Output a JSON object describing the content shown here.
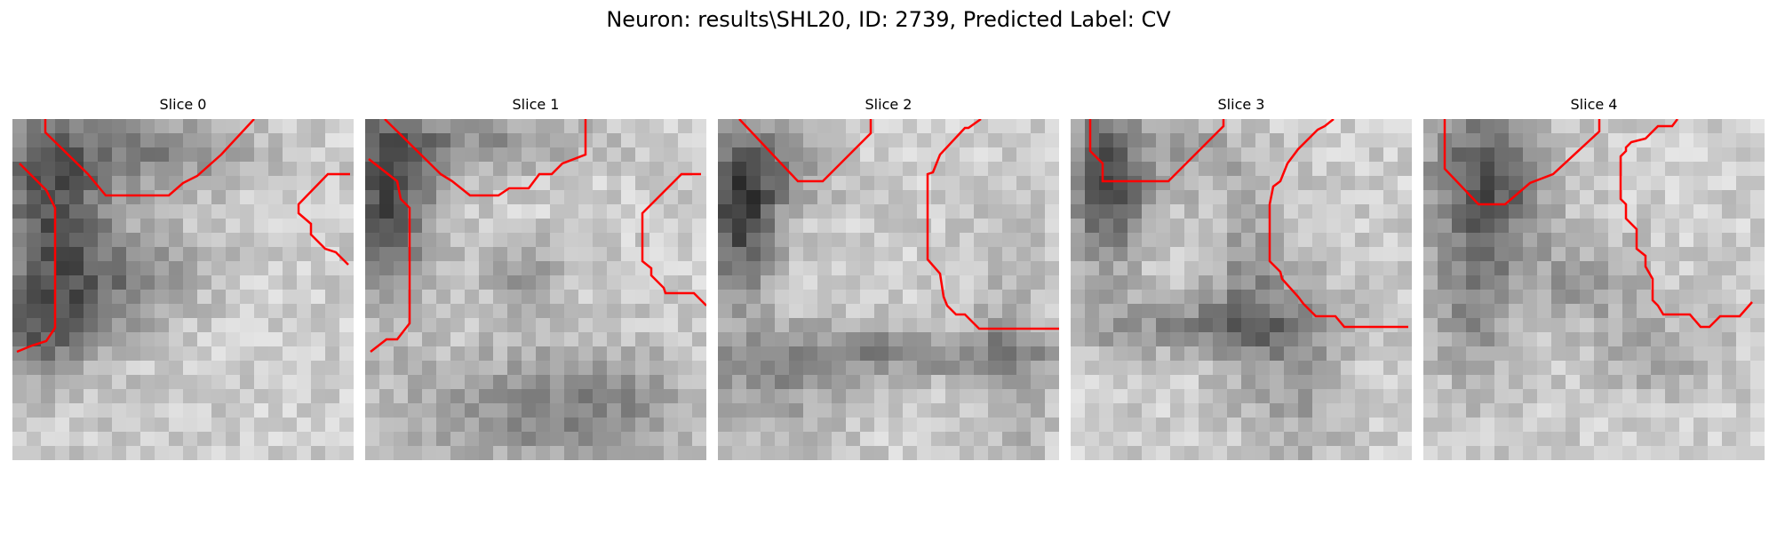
{
  "figure": {
    "title": "Neuron: results\\SHL20, ID: 2739, Predicted Label: CV"
  },
  "colors": {
    "contour": "#ff0000"
  },
  "panels": [
    {
      "title": "Slice 0"
    },
    {
      "title": "Slice 1"
    },
    {
      "title": "Slice 2"
    },
    {
      "title": "Slice 3"
    },
    {
      "title": "Slice 4"
    }
  ]
}
